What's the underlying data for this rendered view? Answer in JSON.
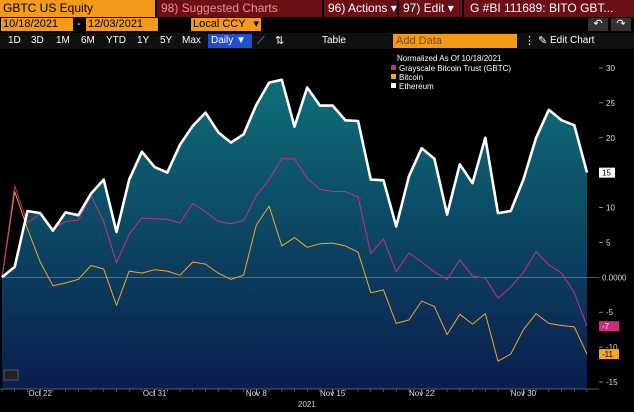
{
  "toolbar": {
    "ticker": "GBTC US Equity",
    "suggested": "98) Suggested Charts",
    "actions": "96) Actions",
    "actions_arrow": "▾",
    "edit": "97) Edit",
    "edit_arrow": "▾",
    "bi": "G #BI 111689: BITO GBT..."
  },
  "dates": {
    "start": "10/18/2021",
    "sep": "-",
    "end": "12/03/2021",
    "ccy": "Local CCY"
  },
  "ranges": [
    "1D",
    "3D",
    "1M",
    "6M",
    "YTD",
    "1Y",
    "5Y",
    "Max"
  ],
  "period": "Daily ▼",
  "table_label": "Table",
  "add_data_placeholder": "Add Data",
  "edit_chart_label": "Edit Chart",
  "colors": {
    "gbtc": "#c6307e",
    "bitcoin": "#f5a623",
    "ethereum": "#ffffff",
    "area_top": "#0e6e78",
    "area_bottom": "#0a1e4e",
    "accent": "#f39a1b"
  },
  "chart_data": {
    "type": "line",
    "title": "",
    "legend_title": "Normalized As Of 10/18/2021",
    "legend_position": "top-right",
    "ylim": [
      -16,
      32
    ],
    "yticks": [
      30,
      25,
      20,
      15,
      10,
      5,
      0,
      -5,
      -10,
      -15
    ],
    "yticks_labels": [
      "30",
      "25",
      "20",
      "15",
      "10",
      "5",
      "0",
      "-5",
      "-10",
      "-15"
    ],
    "x_ticks": [
      "Oct 22",
      "Oct 31",
      "Nov 8",
      "Nov 15",
      "Nov 22",
      "Nov 30"
    ],
    "x_tick_index": [
      3,
      12,
      20,
      26,
      33,
      41
    ],
    "x_year": "2021",
    "series": [
      {
        "name": "Ethereum",
        "color_key": "ethereum",
        "area": true,
        "values": [
          0,
          1.5,
          9.5,
          9.2,
          6.7,
          9.3,
          8.9,
          12,
          14,
          6.5,
          14,
          18,
          15.8,
          15,
          19,
          21.7,
          23.6,
          20.8,
          19.3,
          20.5,
          24.7,
          27.9,
          28.3,
          21.6,
          27.2,
          24.6,
          24.6,
          22.5,
          22.4,
          14,
          13.9,
          7.3,
          14.5,
          18.5,
          17,
          9,
          16.2,
          13.5,
          20,
          9.2,
          9.5,
          14,
          20,
          24,
          22.5,
          21.8,
          15
        ]
      },
      {
        "name": "Grayscale Bitcoin Trust (GBTC)",
        "color_key": "gbtc",
        "label": "-7",
        "values": [
          0,
          13.1,
          7.8,
          9.1,
          7,
          8,
          8.2,
          11.7,
          8,
          2.1,
          6.2,
          8.5,
          8.4,
          8.3,
          7.8,
          10.6,
          9.4,
          8,
          7.7,
          8.1,
          11.7,
          14,
          17,
          17,
          14.2,
          12.6,
          12.3,
          12.3,
          11.5,
          3.4,
          5.5,
          0.8,
          3.5,
          2.2,
          0.8,
          -0.3,
          2.5,
          0.2,
          -0.1,
          -3,
          -1.4,
          0.7,
          3.7,
          1.8,
          0.6,
          -2.2,
          -7
        ]
      },
      {
        "name": "Bitcoin",
        "color_key": "bitcoin",
        "label": "-11",
        "values": [
          0,
          12.3,
          7,
          2.2,
          -1.2,
          -0.8,
          -0.3,
          1.7,
          1.2,
          -4,
          0.9,
          0.6,
          1.1,
          0.9,
          0.3,
          2.2,
          1.9,
          0.6,
          -0.3,
          0.3,
          7.5,
          10.2,
          4.5,
          5.7,
          4.3,
          4.8,
          4.9,
          4.5,
          3.6,
          -2.2,
          -1.8,
          -6.6,
          -6.1,
          -3.4,
          -4.2,
          -8.2,
          -5.3,
          -6.7,
          -5.2,
          -12,
          -11,
          -7.5,
          -5.2,
          -6.6,
          -6.9,
          -7.1,
          -11
        ]
      }
    ],
    "last_labels": {
      "ethereum": "15",
      "zero": "0.0000"
    }
  }
}
